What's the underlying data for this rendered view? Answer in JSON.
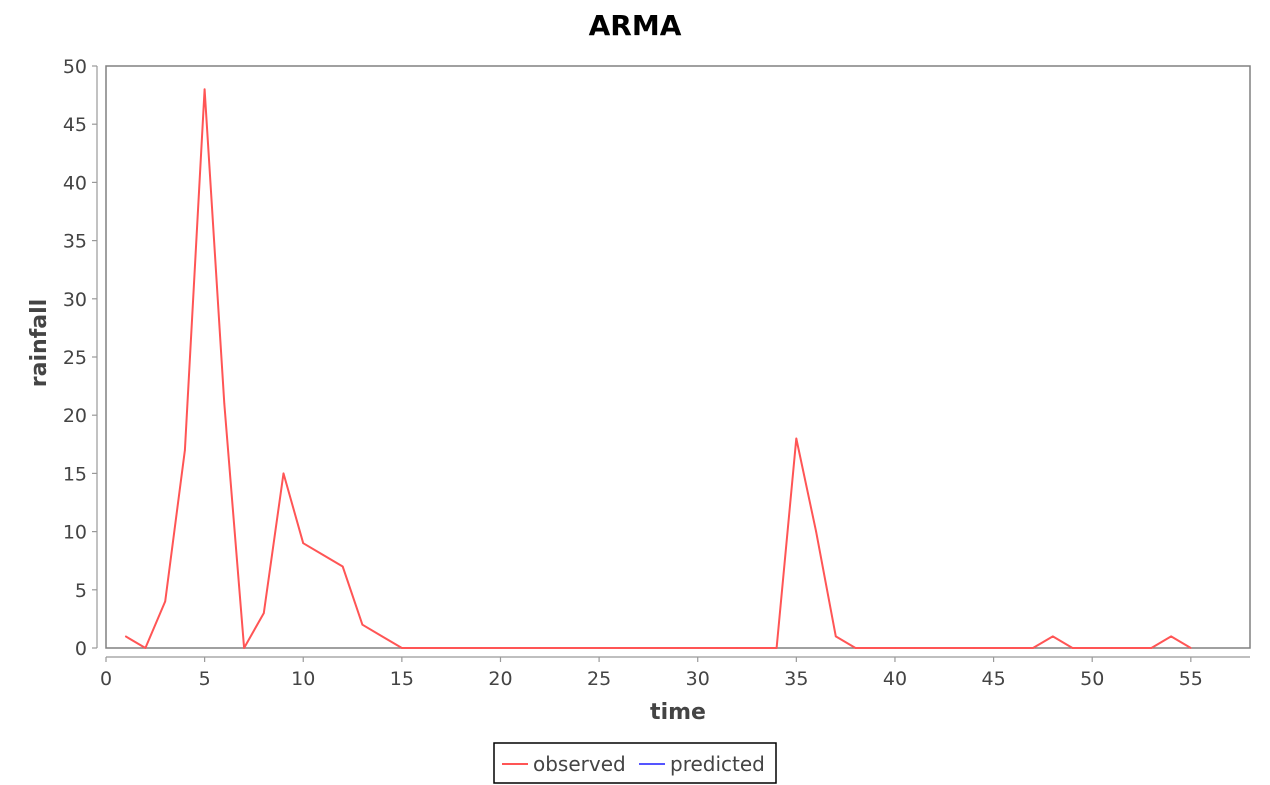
{
  "chart_data": {
    "type": "line",
    "title": "ARMA",
    "xlabel": "time",
    "ylabel": "rainfall",
    "xlim": [
      0,
      58
    ],
    "ylim": [
      0,
      50
    ],
    "x_ticks": [
      0,
      5,
      10,
      15,
      20,
      25,
      30,
      35,
      40,
      45,
      50,
      55
    ],
    "y_ticks": [
      0,
      5,
      10,
      15,
      20,
      25,
      30,
      35,
      40,
      45,
      50
    ],
    "grid": false,
    "legend_position": "bottom-center",
    "series": [
      {
        "name": "observed",
        "color": "#ff5555",
        "x": [
          1,
          2,
          3,
          4,
          5,
          6,
          7,
          8,
          9,
          10,
          11,
          12,
          13,
          14,
          15,
          16,
          17,
          18,
          19,
          20,
          21,
          22,
          23,
          24,
          25,
          26,
          27,
          28,
          29,
          30,
          31,
          32,
          33,
          34,
          35,
          36,
          37,
          38,
          39,
          40,
          41,
          42,
          43,
          44,
          45,
          46,
          47,
          48,
          49,
          50,
          51,
          52,
          53,
          54,
          55
        ],
        "y": [
          1,
          0,
          4,
          17,
          48,
          21,
          0,
          3,
          15,
          9,
          8,
          7,
          2,
          1,
          0,
          0,
          0,
          0,
          0,
          0,
          0,
          0,
          0,
          0,
          0,
          0,
          0,
          0,
          0,
          0,
          0,
          0,
          0,
          0,
          18,
          10,
          1,
          0,
          0,
          0,
          0,
          0,
          0,
          0,
          0,
          0,
          0,
          1,
          0,
          0,
          0,
          0,
          0,
          1,
          0
        ]
      },
      {
        "name": "predicted",
        "color": "#5555ff",
        "x": [],
        "y": []
      }
    ]
  }
}
